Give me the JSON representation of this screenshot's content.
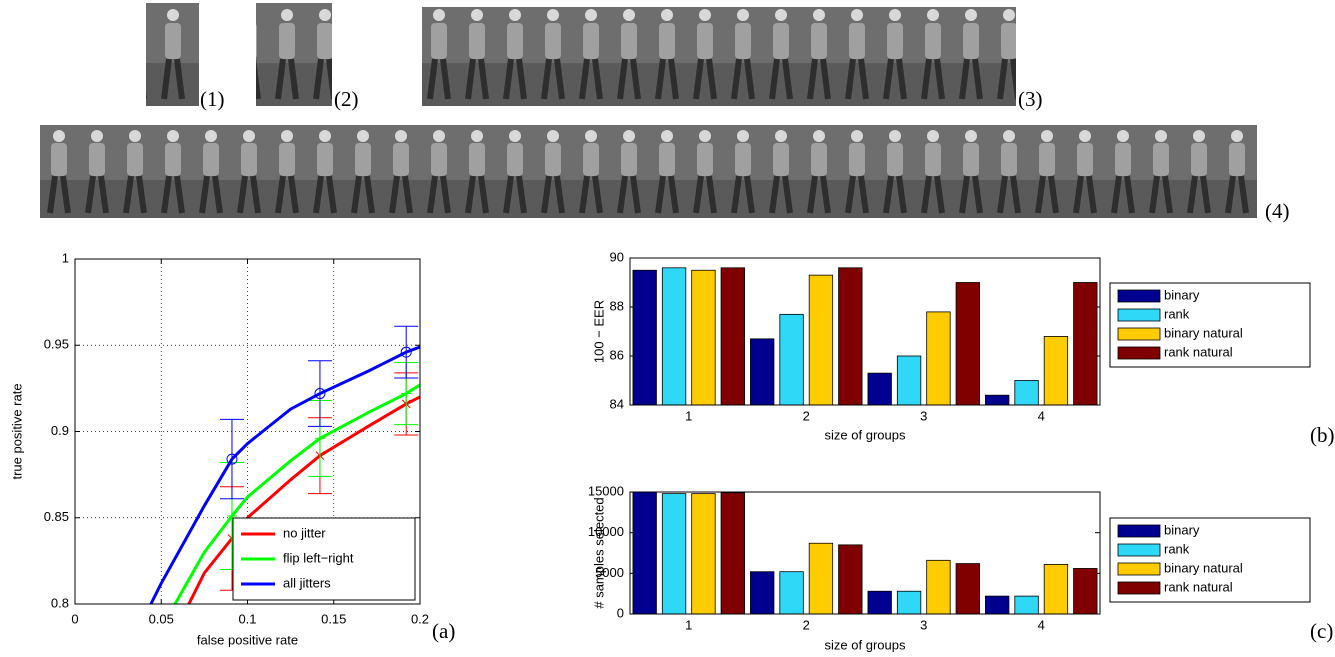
{
  "image_labels": [
    "(1)",
    "(2)",
    "(3)",
    "(4)"
  ],
  "chart_data": [
    {
      "type": "line",
      "panel_label": "(a)",
      "xlabel": "false positive rate",
      "ylabel": "true positive rate",
      "xlim": [
        0,
        0.2
      ],
      "ylim": [
        0.8,
        1
      ],
      "xticks": [
        0,
        0.05,
        0.1,
        0.15,
        0.2
      ],
      "yticks": [
        0.8,
        0.85,
        0.9,
        0.95,
        1
      ],
      "grid": true,
      "legend": "lower right",
      "series": [
        {
          "name": "no jitter",
          "color": "#ff0000",
          "marker": "x",
          "x": [
            0.066,
            0.075,
            0.091,
            0.1,
            0.125,
            0.142,
            0.17,
            0.192,
            0.2
          ],
          "values": [
            0.8,
            0.818,
            0.838,
            0.85,
            0.872,
            0.886,
            0.903,
            0.916,
            0.92
          ],
          "errors": [
            null,
            null,
            0.03,
            null,
            null,
            0.022,
            null,
            0.018,
            null
          ]
        },
        {
          "name": "flip left−right",
          "color": "#00ff00",
          "marker": "+",
          "x": [
            0.058,
            0.075,
            0.091,
            0.1,
            0.125,
            0.142,
            0.17,
            0.192,
            0.2
          ],
          "values": [
            0.8,
            0.83,
            0.851,
            0.862,
            0.883,
            0.896,
            0.911,
            0.922,
            0.927
          ],
          "errors": [
            null,
            null,
            0.031,
            null,
            null,
            0.022,
            null,
            0.018,
            null
          ]
        },
        {
          "name": "all jitters",
          "color": "#0000ff",
          "marker": "o",
          "x": [
            0.044,
            0.05,
            0.075,
            0.091,
            0.1,
            0.125,
            0.142,
            0.17,
            0.192,
            0.2
          ],
          "values": [
            0.8,
            0.812,
            0.857,
            0.884,
            0.893,
            0.913,
            0.922,
            0.935,
            0.946,
            0.949
          ],
          "errors": [
            null,
            null,
            null,
            0.023,
            null,
            null,
            0.019,
            null,
            0.015,
            null
          ]
        }
      ]
    },
    {
      "type": "bar",
      "panel_label": "(b)",
      "xlabel": "size of groups",
      "ylabel": "100 − EER",
      "categories": [
        "1",
        "2",
        "3",
        "4"
      ],
      "ylim": [
        84,
        90
      ],
      "yticks": [
        84,
        86,
        88,
        90
      ],
      "legend": "outside right",
      "series": [
        {
          "name": "binary",
          "color": "#000090",
          "values": [
            89.5,
            86.7,
            85.3,
            84.4
          ]
        },
        {
          "name": "rank",
          "color": "#30d8f8",
          "values": [
            89.6,
            87.7,
            86.0,
            85.0
          ]
        },
        {
          "name": "binary natural",
          "color": "#ffcc00",
          "values": [
            89.5,
            89.3,
            87.8,
            86.8
          ]
        },
        {
          "name": "rank natural",
          "color": "#800000",
          "values": [
            89.6,
            89.6,
            89.0,
            89.0
          ]
        }
      ]
    },
    {
      "type": "bar",
      "panel_label": "(c)",
      "xlabel": "size of groups",
      "ylabel": "# samples selected",
      "categories": [
        "1",
        "2",
        "3",
        "4"
      ],
      "ylim": [
        0,
        15000
      ],
      "yticks": [
        0,
        5000,
        10000,
        15000
      ],
      "legend": "outside right",
      "series": [
        {
          "name": "binary",
          "color": "#000090",
          "values": [
            15000,
            5200,
            2800,
            2200
          ]
        },
        {
          "name": "rank",
          "color": "#30d8f8",
          "values": [
            14800,
            5200,
            2800,
            2200
          ]
        },
        {
          "name": "binary natural",
          "color": "#ffcc00",
          "values": [
            14800,
            8700,
            6600,
            6100
          ]
        },
        {
          "name": "rank natural",
          "color": "#800000",
          "values": [
            14900,
            8500,
            6200,
            5600
          ]
        }
      ]
    }
  ]
}
